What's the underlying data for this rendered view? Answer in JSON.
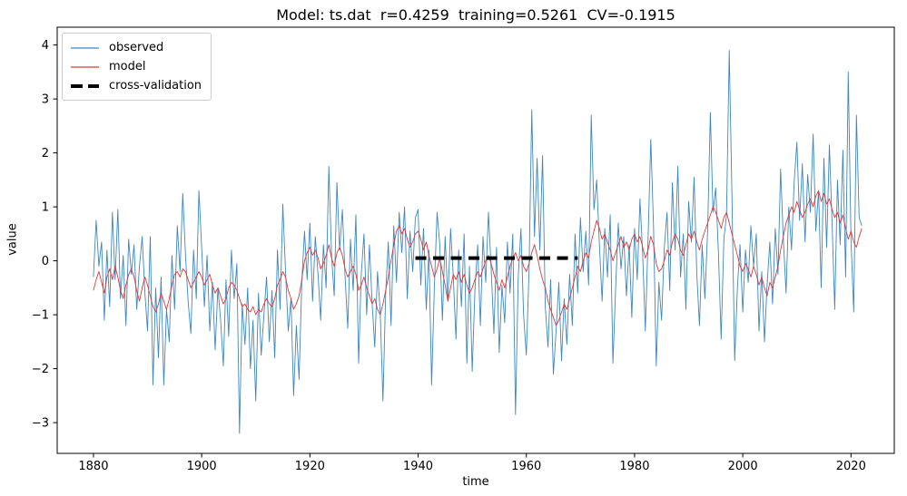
{
  "chart_data": {
    "type": "line",
    "title": "Model: ts.dat  r=0.4259  training=0.5261  CV=-0.1915",
    "xlabel": "time",
    "ylabel": "value",
    "xlim": [
      1873.3,
      2028.0
    ],
    "ylim": [
      -3.57,
      4.33
    ],
    "xticks": [
      1880,
      1900,
      1920,
      1940,
      1960,
      1980,
      2000,
      2020
    ],
    "xtick_labels": [
      "1880",
      "1900",
      "1920",
      "1940",
      "1960",
      "1980",
      "2000",
      "2020"
    ],
    "yticks": [
      -3,
      -2,
      -1,
      0,
      1,
      2,
      3,
      4
    ],
    "ytick_labels": [
      "−3",
      "−2",
      "−1",
      "0",
      "1",
      "2",
      "3",
      "4"
    ],
    "grid": false,
    "legend_position": "upper-left",
    "x_start": 1880.0,
    "x_step": 0.5,
    "series": [
      {
        "name": "observed",
        "color": "#3d87c0",
        "linewidth": 0.9,
        "values": [
          -0.3,
          0.75,
          -0.1,
          0.35,
          -1.1,
          0.2,
          -0.85,
          0.9,
          -0.35,
          0.95,
          -0.7,
          0.1,
          -1.2,
          0.4,
          -0.25,
          0.3,
          -0.9,
          -0.1,
          0.45,
          -0.6,
          -1.3,
          0.45,
          -2.3,
          -0.5,
          -1.8,
          -0.3,
          -2.3,
          -0.9,
          -1.5,
          0.1,
          -0.9,
          0.65,
          -0.2,
          1.25,
          0.1,
          -0.75,
          -1.35,
          0.2,
          -0.7,
          1.3,
          0.25,
          -0.85,
          0.1,
          -1.3,
          -0.4,
          -1.65,
          -0.5,
          -1.1,
          -1.95,
          -0.35,
          -1.4,
          0.2,
          -0.7,
          -0.05,
          -3.2,
          -0.8,
          -1.55,
          -0.5,
          -2.0,
          -1.1,
          -2.6,
          -0.6,
          -1.75,
          -1.0,
          -0.3,
          -1.5,
          -0.55,
          -1.8,
          0.2,
          -0.9,
          1.05,
          -0.2,
          -1.3,
          -0.7,
          -2.5,
          -1.2,
          -2.2,
          -0.4,
          0.55,
          -0.35,
          0.7,
          -0.75,
          0.45,
          -0.25,
          -1.1,
          0.3,
          -0.5,
          1.75,
          0.1,
          -0.65,
          1.45,
          0.2,
          0.95,
          -0.3,
          -1.25,
          0.4,
          -0.55,
          0.85,
          -1.9,
          -0.25,
          0.5,
          -1.0,
          0.3,
          -0.8,
          -1.6,
          -0.2,
          -0.95,
          -2.6,
          -0.6,
          0.35,
          -1.2,
          0.65,
          -0.4,
          0.9,
          0.15,
          1.0,
          -0.7,
          0.55,
          -0.2,
          0.8,
          0.95,
          -0.45,
          0.6,
          -0.9,
          0.2,
          -2.3,
          -0.5,
          0.9,
          0.3,
          -1.1,
          0.45,
          -0.75,
          0.6,
          -0.3,
          -1.45,
          0.2,
          -0.85,
          0.5,
          -1.9,
          -0.1,
          -2.05,
          -0.55,
          0.3,
          -1.2,
          0.45,
          -0.4,
          0.9,
          -0.15,
          -1.35,
          0.25,
          -1.7,
          -0.45,
          -1.15,
          0.35,
          -0.6,
          0.5,
          -2.85,
          -0.3,
          0.6,
          -1.0,
          -1.75,
          -0.2,
          2.8,
          0.45,
          1.9,
          0.2,
          1.95,
          -0.85,
          -1.6,
          -0.35,
          -2.1,
          -1.3,
          -0.4,
          -1.85,
          -0.7,
          -1.55,
          -0.25,
          -1.2,
          0.5,
          -0.6,
          0.8,
          -0.2,
          0.55,
          -0.45,
          2.7,
          0.95,
          1.5,
          0.3,
          -0.75,
          0.6,
          -0.3,
          0.85,
          -1.9,
          -0.5,
          0.7,
          -0.15,
          0.45,
          -0.65,
          0.3,
          -1.05,
          0.6,
          -0.35,
          1.15,
          0.1,
          -1.3,
          0.4,
          2.25,
          0.65,
          -1.95,
          -0.4,
          -1.1,
          0.25,
          0.9,
          -0.55,
          1.45,
          0.2,
          1.75,
          -0.3,
          0.5,
          -0.9,
          1.1,
          0.35,
          1.55,
          -0.25,
          -1.2,
          0.3,
          -0.7,
          0.55,
          2.75,
          0.9,
          1.35,
          0.15,
          -1.45,
          0.4,
          0.85,
          3.9,
          1.2,
          -1.85,
          -0.5,
          0.3,
          -0.95,
          0.2,
          -0.4,
          0.65,
          -0.1,
          0.5,
          -1.3,
          -0.2,
          -1.5,
          -0.45,
          0.35,
          -0.8,
          0.6,
          -0.25,
          1.7,
          0.4,
          -0.6,
          1.0,
          0.2,
          1.45,
          2.2,
          0.75,
          1.8,
          0.35,
          1.6,
          0.9,
          2.35,
          0.55,
          1.3,
          -0.5,
          1.9,
          0.25,
          2.15,
          0.7,
          -0.9,
          1.5,
          0.3,
          2.05,
          -0.3,
          3.5,
          0.4,
          -0.95,
          2.7,
          0.8,
          0.65
        ]
      },
      {
        "name": "model",
        "color": "#da3b3b",
        "linewidth": 0.9,
        "values": [
          -0.55,
          -0.35,
          -0.2,
          -0.4,
          -0.6,
          -0.3,
          -0.15,
          -0.35,
          -0.1,
          -0.3,
          -0.55,
          -0.7,
          -0.45,
          -0.25,
          -0.15,
          -0.3,
          -0.55,
          -0.75,
          -0.5,
          -0.3,
          -0.45,
          -0.65,
          -0.85,
          -0.95,
          -0.8,
          -0.6,
          -0.75,
          -0.9,
          -0.7,
          -0.45,
          -0.25,
          -0.2,
          -0.3,
          -0.15,
          -0.2,
          -0.35,
          -0.5,
          -0.4,
          -0.3,
          -0.2,
          -0.3,
          -0.45,
          -0.35,
          -0.25,
          -0.45,
          -0.6,
          -0.5,
          -0.65,
          -0.8,
          -0.7,
          -0.5,
          -0.4,
          -0.45,
          -0.55,
          -0.7,
          -0.85,
          -0.8,
          -0.9,
          -0.95,
          -0.85,
          -1.0,
          -0.9,
          -0.95,
          -0.8,
          -0.7,
          -0.8,
          -0.85,
          -0.7,
          -0.45,
          -0.35,
          -0.2,
          -0.3,
          -0.55,
          -0.7,
          -0.9,
          -0.8,
          -0.65,
          -0.35,
          0.0,
          0.15,
          0.25,
          0.1,
          0.2,
          0.05,
          -0.15,
          -0.05,
          0.1,
          0.3,
          0.05,
          -0.1,
          0.15,
          0.25,
          0.1,
          -0.15,
          -0.3,
          -0.2,
          -0.1,
          -0.25,
          -0.55,
          -0.45,
          -0.3,
          -0.5,
          -0.65,
          -0.8,
          -0.7,
          -0.9,
          -1.0,
          -0.8,
          -0.55,
          -0.3,
          0.0,
          0.3,
          0.55,
          0.65,
          0.5,
          0.6,
          0.4,
          0.25,
          0.35,
          0.5,
          0.55,
          0.4,
          0.2,
          0.35,
          0.1,
          -0.1,
          -0.3,
          -0.15,
          0.05,
          -0.2,
          -0.45,
          -0.75,
          -0.5,
          -0.25,
          -0.35,
          -0.2,
          -0.4,
          -0.25,
          -0.45,
          -0.6,
          -0.5,
          -0.35,
          -0.2,
          -0.3,
          -0.15,
          0.0,
          0.1,
          -0.05,
          -0.25,
          -0.4,
          -0.55,
          -0.35,
          -0.5,
          -0.3,
          -0.1,
          0.05,
          0.15,
          0.0,
          0.1,
          -0.1,
          -0.2,
          -0.05,
          0.15,
          0.3,
          0.1,
          -0.15,
          -0.35,
          -0.5,
          -0.75,
          -0.9,
          -1.05,
          -1.2,
          -1.1,
          -0.95,
          -0.8,
          -0.9,
          -0.7,
          -0.5,
          -0.3,
          -0.1,
          -0.2,
          0.0,
          0.15,
          0.05,
          0.35,
          0.55,
          0.75,
          0.6,
          0.4,
          0.5,
          0.35,
          0.2,
          0.0,
          0.15,
          0.3,
          0.45,
          0.25,
          0.35,
          0.2,
          0.4,
          0.5,
          0.35,
          0.45,
          0.25,
          0.05,
          0.2,
          0.45,
          0.3,
          -0.05,
          -0.2,
          -0.15,
          0.0,
          0.2,
          0.1,
          0.35,
          0.5,
          0.4,
          0.2,
          0.1,
          0.3,
          0.5,
          0.4,
          0.55,
          0.35,
          0.2,
          0.4,
          0.55,
          0.7,
          0.85,
          1.0,
          0.9,
          0.75,
          0.6,
          0.8,
          0.9,
          0.7,
          0.5,
          0.3,
          0.1,
          -0.1,
          -0.2,
          -0.05,
          -0.15,
          -0.3,
          -0.1,
          -0.25,
          -0.45,
          -0.3,
          -0.5,
          -0.65,
          -0.4,
          -0.5,
          -0.3,
          -0.1,
          0.2,
          0.45,
          0.7,
          0.85,
          1.0,
          0.9,
          1.1,
          0.95,
          0.8,
          0.9,
          1.05,
          1.15,
          1.0,
          1.2,
          1.3,
          1.1,
          1.25,
          1.05,
          1.15,
          0.95,
          0.8,
          0.9,
          0.7,
          0.85,
          0.6,
          0.4,
          0.55,
          0.35,
          0.25,
          0.45,
          0.6
        ]
      }
    ],
    "cross_validation": {
      "name": "cross-validation",
      "color": "#000000",
      "linewidth": 4,
      "dash": [
        12,
        7.5
      ],
      "x_range": [
        1939.5,
        1969.5
      ],
      "y": 0.05
    },
    "colors": {
      "background": "#ffffff",
      "spine": "#000000",
      "text": "#000000",
      "legend_border": "#cccccc"
    }
  }
}
